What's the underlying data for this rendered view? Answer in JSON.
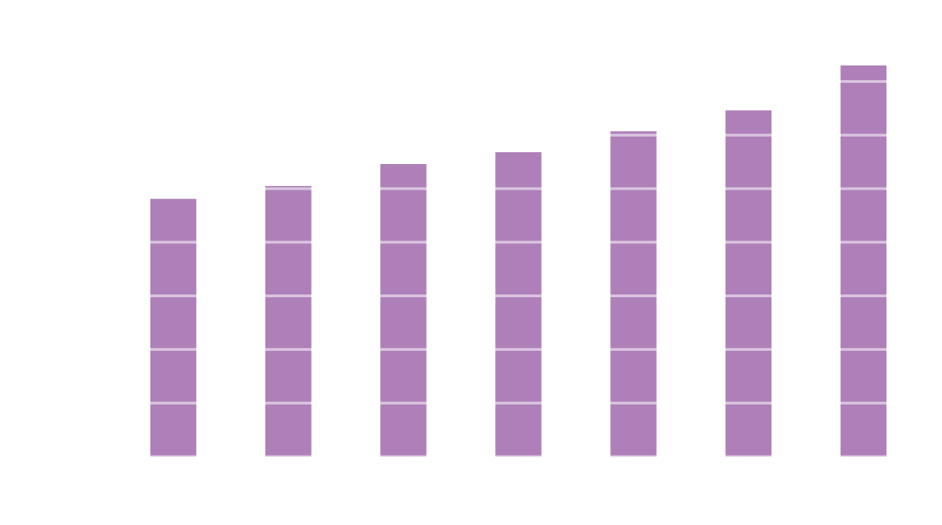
{
  "chart_data": {
    "type": "bar",
    "categories": [
      null,
      null,
      null,
      null,
      null,
      null,
      null
    ],
    "values": [
      4.81,
      5.05,
      5.46,
      5.68,
      6.07,
      6.46,
      7.3
    ],
    "color": "#ae7fb8",
    "ylim": [
      0,
      8
    ],
    "yticks": [
      0,
      1,
      2,
      3,
      4,
      5,
      6,
      7
    ],
    "grid": true
  }
}
